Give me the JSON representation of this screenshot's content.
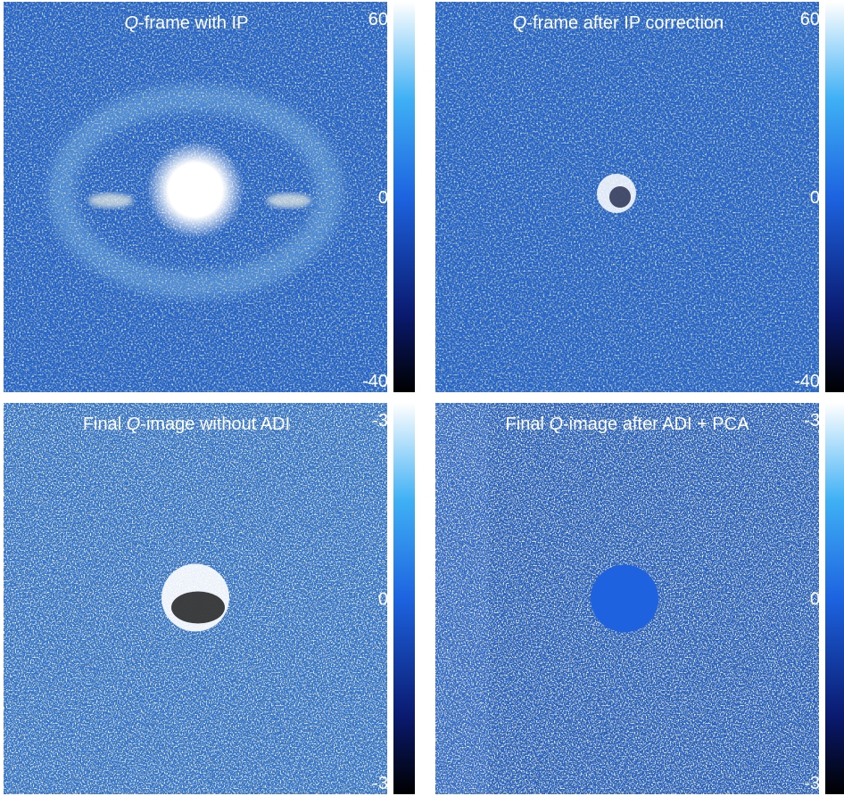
{
  "panels": [
    {
      "title": [
        {
          "text": "Q",
          "italic": true
        },
        {
          "text": "-frame with IP"
        }
      ],
      "colorbar": {
        "top": "60",
        "middle": "0",
        "bottom": "-40"
      }
    },
    {
      "title": [
        {
          "text": "Q",
          "italic": true
        },
        {
          "text": "-frame after IP correction"
        }
      ],
      "colorbar": {
        "top": "60",
        "middle": "0",
        "bottom": "-40"
      }
    },
    {
      "title": [
        {
          "text": "Final "
        },
        {
          "text": "Q",
          "italic": true
        },
        {
          "text": "-image without ADI"
        }
      ],
      "colorbar": {
        "top": "-3",
        "middle": "0",
        "bottom": "-3"
      }
    },
    {
      "title": [
        {
          "text": "Final "
        },
        {
          "text": "Q",
          "italic": true
        },
        {
          "text": "-image after ADI + PCA"
        }
      ],
      "colorbar": {
        "top": "-3",
        "middle": "0",
        "bottom": "-3"
      }
    }
  ]
}
